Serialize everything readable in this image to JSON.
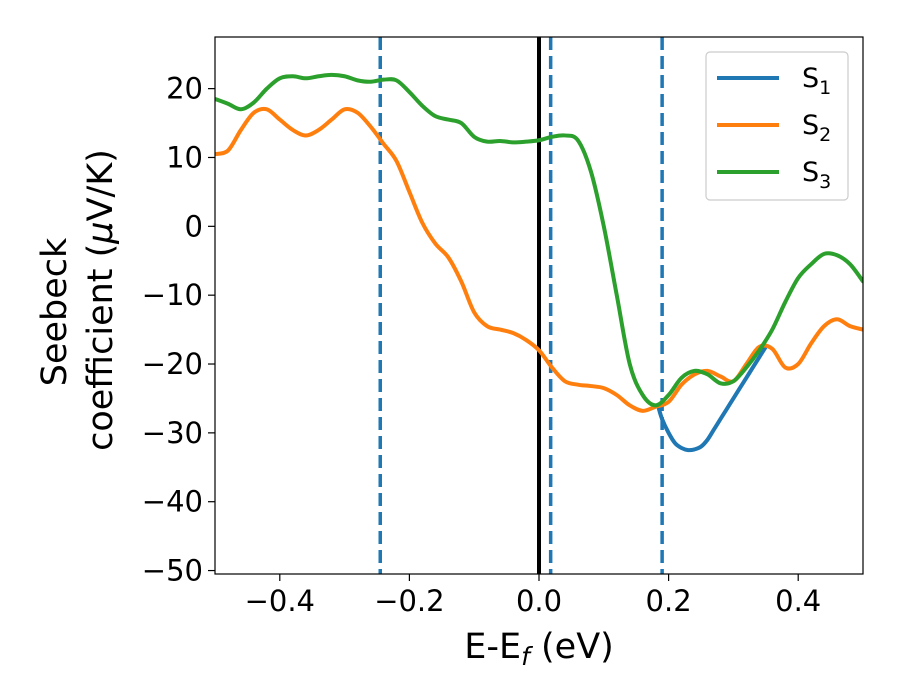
{
  "chart_data": {
    "type": "line",
    "xlabel": {
      "main": "E-E",
      "sub": "f",
      "suffix": " (eV)"
    },
    "ylabel": {
      "line1": "Seebeck",
      "line2_pre": "coefficient  (",
      "line2_mu": "μ",
      "line2_post": "V/K)"
    },
    "xlim": [
      -0.5,
      0.5
    ],
    "ylim": [
      -50.5,
      27.5
    ],
    "xticks": [
      -0.4,
      -0.2,
      0.0,
      0.2,
      0.4
    ],
    "xtick_labels": [
      "−0.4",
      "−0.2",
      "0.0",
      "0.2",
      "0.4"
    ],
    "yticks": [
      -50,
      -40,
      -30,
      -20,
      -10,
      0,
      10,
      20
    ],
    "ytick_labels": [
      "−50",
      "−40",
      "−30",
      "−20",
      "−10",
      "0",
      "10",
      "20"
    ],
    "grid": false,
    "legend_position": "top-right",
    "vlines": [
      {
        "x": 0.0,
        "style": "solid",
        "color": "#000000"
      },
      {
        "x": -0.245,
        "style": "dashed",
        "color": "#1f77b4"
      },
      {
        "x": 0.018,
        "style": "dashed",
        "color": "#1f77b4"
      },
      {
        "x": 0.19,
        "style": "dashed",
        "color": "#1f77b4"
      }
    ],
    "series": [
      {
        "name": "S",
        "sub": "1",
        "color": "#1f77b4",
        "x": [
          0.185,
          0.19,
          0.2,
          0.21,
          0.22,
          0.23,
          0.24,
          0.25,
          0.26,
          0.27,
          0.28,
          0.29,
          0.3,
          0.31,
          0.32,
          0.33,
          0.34,
          0.35
        ],
        "y": [
          -26.5,
          -28.0,
          -30.0,
          -31.5,
          -32.2,
          -32.5,
          -32.4,
          -32.0,
          -31.0,
          -29.5,
          -28.0,
          -26.5,
          -25.0,
          -23.5,
          -22.0,
          -20.5,
          -19.0,
          -17.5
        ]
      },
      {
        "name": "S",
        "sub": "2",
        "color": "#ff7f0e",
        "x": [
          -0.5,
          -0.48,
          -0.46,
          -0.44,
          -0.42,
          -0.4,
          -0.38,
          -0.36,
          -0.34,
          -0.32,
          -0.3,
          -0.28,
          -0.26,
          -0.24,
          -0.22,
          -0.2,
          -0.18,
          -0.16,
          -0.14,
          -0.12,
          -0.1,
          -0.08,
          -0.06,
          -0.04,
          -0.02,
          0.0,
          0.02,
          0.04,
          0.06,
          0.08,
          0.1,
          0.12,
          0.14,
          0.16,
          0.18,
          0.2,
          0.22,
          0.24,
          0.26,
          0.28,
          0.3,
          0.32,
          0.34,
          0.36,
          0.38,
          0.4,
          0.42,
          0.44,
          0.46,
          0.48,
          0.5
        ],
        "y": [
          10.5,
          11.0,
          14.0,
          16.5,
          17.0,
          15.5,
          14.0,
          13.2,
          14.0,
          15.5,
          17.0,
          16.5,
          14.5,
          12.0,
          9.5,
          5.0,
          0.5,
          -2.5,
          -4.5,
          -8.0,
          -12.5,
          -14.5,
          -15.0,
          -15.5,
          -16.5,
          -18.0,
          -20.5,
          -22.5,
          -23.0,
          -23.2,
          -23.5,
          -24.5,
          -26.0,
          -26.8,
          -26.2,
          -25.5,
          -23.0,
          -21.5,
          -21.0,
          -21.8,
          -22.5,
          -20.0,
          -17.5,
          -17.8,
          -20.5,
          -20.0,
          -17.0,
          -14.5,
          -13.5,
          -14.5,
          -15.0
        ]
      },
      {
        "name": "S",
        "sub": "3",
        "color": "#2ca02c",
        "x": [
          -0.5,
          -0.48,
          -0.46,
          -0.44,
          -0.42,
          -0.4,
          -0.38,
          -0.36,
          -0.34,
          -0.32,
          -0.3,
          -0.28,
          -0.26,
          -0.24,
          -0.22,
          -0.2,
          -0.18,
          -0.16,
          -0.14,
          -0.12,
          -0.1,
          -0.08,
          -0.06,
          -0.04,
          -0.02,
          0.0,
          0.02,
          0.04,
          0.06,
          0.08,
          0.1,
          0.12,
          0.14,
          0.16,
          0.18,
          0.2,
          0.22,
          0.24,
          0.26,
          0.28,
          0.3,
          0.32,
          0.34,
          0.36,
          0.38,
          0.4,
          0.42,
          0.44,
          0.46,
          0.48,
          0.5
        ],
        "y": [
          18.5,
          17.8,
          17.0,
          18.0,
          20.0,
          21.5,
          21.8,
          21.5,
          21.8,
          22.0,
          21.8,
          21.2,
          21.0,
          21.3,
          21.2,
          19.5,
          17.5,
          16.0,
          15.5,
          15.0,
          13.0,
          12.3,
          12.4,
          12.2,
          12.3,
          12.5,
          13.0,
          13.2,
          12.5,
          8.0,
          0.0,
          -10.0,
          -20.0,
          -24.5,
          -26.0,
          -24.5,
          -22.0,
          -21.0,
          -21.5,
          -22.8,
          -22.5,
          -20.5,
          -18.0,
          -15.0,
          -11.0,
          -7.5,
          -5.5,
          -4.0,
          -4.2,
          -5.5,
          -8.0
        ]
      }
    ]
  }
}
